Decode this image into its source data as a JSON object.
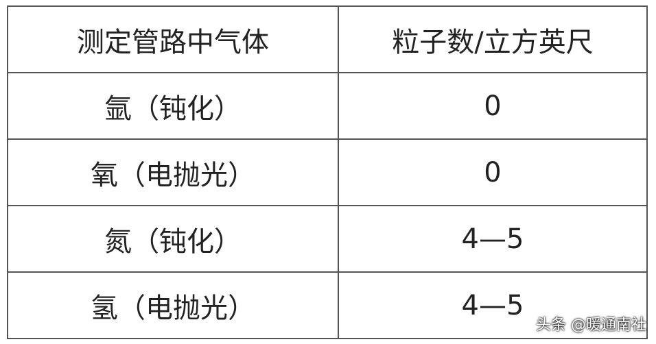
{
  "table": {
    "headers": [
      "测定管路中气体",
      "粒子数/立方英尺"
    ],
    "rows": [
      [
        "氩（钝化）",
        "0"
      ],
      [
        "氧（电抛光）",
        "0"
      ],
      [
        "氮（钝化）",
        "4—5"
      ],
      [
        "氢（电抛光）",
        "4—5"
      ]
    ]
  },
  "watermark": "头条 @暖通南社"
}
